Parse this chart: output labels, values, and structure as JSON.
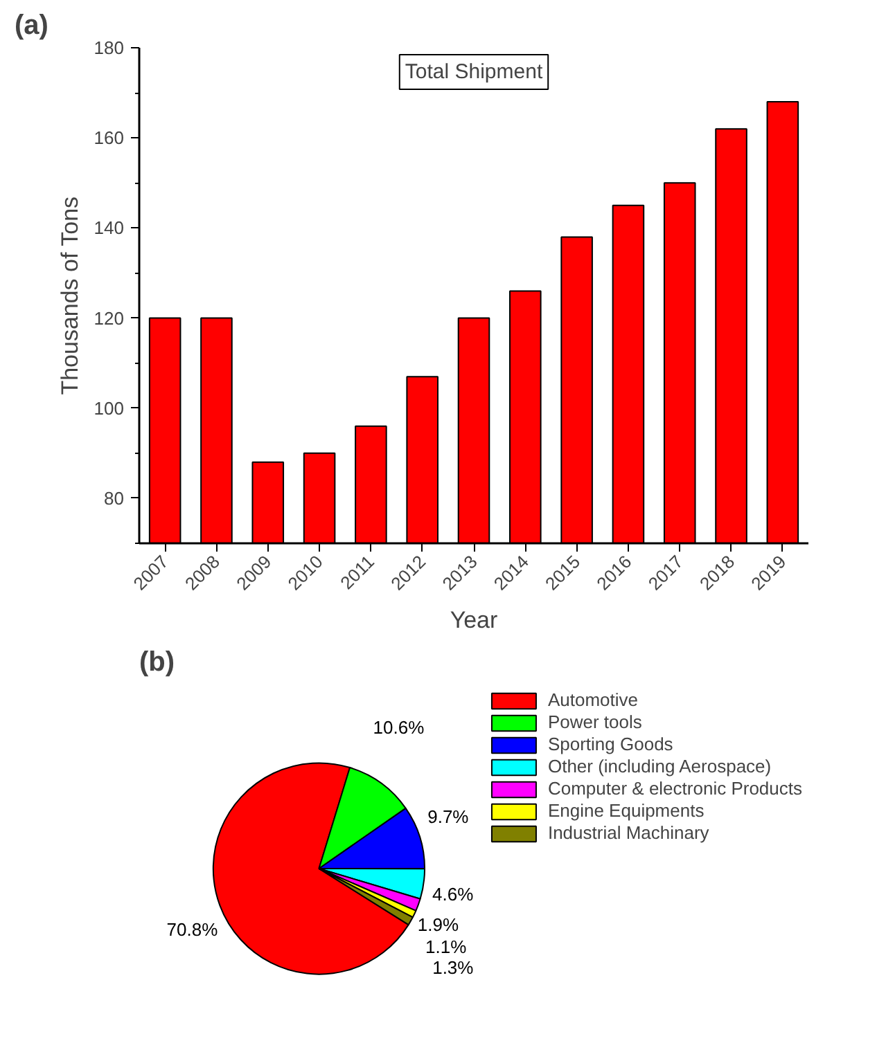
{
  "chart_data": [
    {
      "type": "bar",
      "title": "Total Shipment",
      "xlabel": "Year",
      "ylabel": "Thousands of Tons",
      "categories": [
        "2007",
        "2008",
        "2009",
        "2010",
        "2011",
        "2012",
        "2013",
        "2014",
        "2015",
        "2016",
        "2017",
        "2018",
        "2019"
      ],
      "values": [
        120,
        120,
        88,
        90,
        96,
        107,
        120,
        126,
        138,
        145,
        150,
        162,
        168
      ],
      "color": "#ff0000",
      "ylim": [
        70,
        180
      ],
      "yticks": [
        80,
        100,
        120,
        140,
        160,
        180
      ],
      "grid": false,
      "annotations": [
        "(a)"
      ]
    },
    {
      "type": "pie",
      "categories": [
        "Automotive",
        "Power tools",
        "Sporting Goods",
        "Other (including Aerospace)",
        "Computer & electronic Products",
        "Engine Equipments",
        "Industrial Machinary"
      ],
      "values": [
        70.8,
        10.6,
        9.7,
        4.6,
        1.9,
        1.1,
        1.3
      ],
      "colors": [
        "#ff0000",
        "#00ff00",
        "#0000ff",
        "#00ffff",
        "#ff00ff",
        "#ffff00",
        "#808000"
      ],
      "value_labels": [
        "70.8%",
        "10.6%",
        "9.7%",
        "4.6%",
        "1.9%",
        "1.1%",
        "1.3%"
      ],
      "legend": "top right",
      "annotations": [
        "(b)"
      ]
    }
  ]
}
